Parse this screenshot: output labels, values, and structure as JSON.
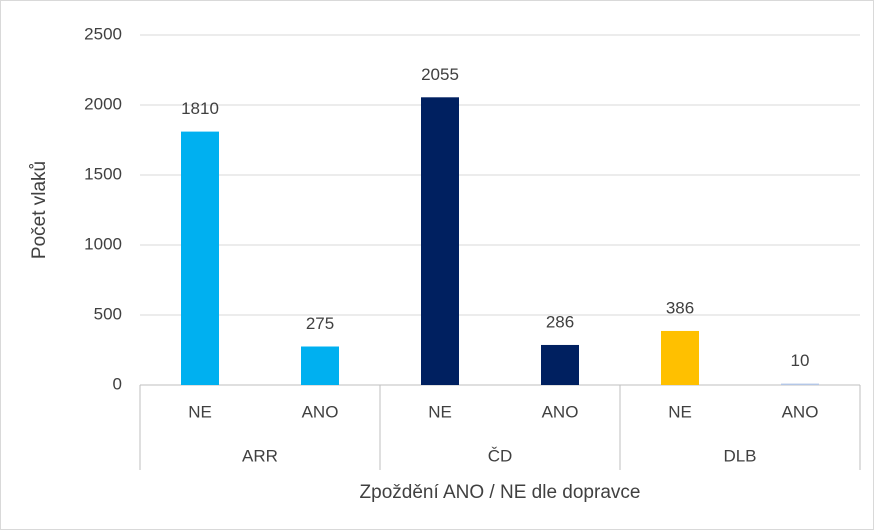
{
  "chart_data": {
    "type": "bar",
    "x_label": "Zpoždění ANO / NE dle dopravce",
    "y_label": "Počet vlaků",
    "categories": [
      "NE",
      "ANO",
      "NE",
      "ANO",
      "NE",
      "ANO"
    ],
    "groups": [
      "ARR",
      "ČD",
      "DLB"
    ],
    "values": [
      1810,
      275,
      2055,
      286,
      386,
      10
    ],
    "colors": [
      "#00b0f0",
      "#00b0f0",
      "#002060",
      "#002060",
      "#ffc000",
      "#b4c7e7"
    ],
    "ylim": [
      0,
      2500
    ],
    "yticks": [
      0,
      500,
      1000,
      1500,
      2000,
      2500
    ],
    "grid": true
  }
}
